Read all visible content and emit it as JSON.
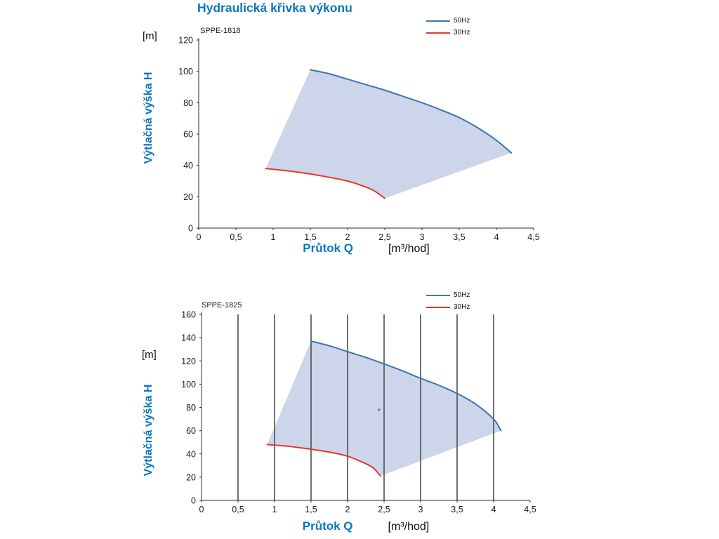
{
  "page": {
    "title": "Hydraulická křivka výkonu"
  },
  "colors": {
    "accent_blue": "#0d76bc",
    "curve_blue": "#3c76b0",
    "curve_red": "#e4392b",
    "envelope_fill": "#ccd5e9",
    "axis": "#2b2b2b",
    "grid": "#4d4d4d"
  },
  "chart_data": [
    {
      "type": "line",
      "model": "SPPE-1818",
      "y_unit": "[m]",
      "y_axis_label": "Výtlačná výška H",
      "x_axis_label": "Průtok Q",
      "x_unit": "[m³/hod]",
      "legend_position": "top-right",
      "xlim": [
        0,
        4.5
      ],
      "ylim": [
        0,
        120
      ],
      "xticks": [
        0,
        0.5,
        1,
        1.5,
        2,
        2.5,
        3,
        3.5,
        4,
        4.5
      ],
      "xtick_labels": [
        "0",
        "0,5",
        "1",
        "1,5",
        "2",
        "2,5",
        "3",
        "3,5",
        "4",
        "4,5"
      ],
      "yticks": [
        0,
        20,
        40,
        60,
        80,
        100,
        120
      ],
      "ytick_labels": [
        "0",
        "20",
        "40",
        "60",
        "80",
        "100",
        "120"
      ],
      "grid_x": [],
      "envelope_color": "#ccd5e9",
      "series": [
        {
          "name": "50Hz",
          "color": "#3c76b0",
          "points": [
            [
              1.5,
              101
            ],
            [
              1.75,
              98.5
            ],
            [
              2,
              95
            ],
            [
              2.25,
              91.5
            ],
            [
              2.5,
              88
            ],
            [
              2.75,
              84
            ],
            [
              3,
              80
            ],
            [
              3.25,
              75.5
            ],
            [
              3.5,
              70.5
            ],
            [
              3.75,
              64
            ],
            [
              4,
              56
            ],
            [
              4.2,
              48
            ]
          ]
        },
        {
          "name": "30Hz",
          "color": "#e4392b",
          "points": [
            [
              0.9,
              38
            ],
            [
              1.2,
              36.5
            ],
            [
              1.5,
              34.5
            ],
            [
              1.8,
              32
            ],
            [
              2,
              30
            ],
            [
              2.2,
              27
            ],
            [
              2.35,
              24
            ],
            [
              2.5,
              19
            ]
          ]
        }
      ]
    },
    {
      "type": "line",
      "model": "SPPE-1825",
      "y_unit": "[m]",
      "y_axis_label": "Výtlačná výška H",
      "x_axis_label": "Průtok Q",
      "x_unit": "[m³/hod]",
      "legend_position": "top-right",
      "xlim": [
        0,
        4.5
      ],
      "ylim": [
        0,
        160
      ],
      "xticks": [
        0,
        0.5,
        1,
        1.5,
        2,
        2.5,
        3,
        3.5,
        4,
        4.5
      ],
      "xtick_labels": [
        "0",
        "0,5",
        "1",
        "1,5",
        "2",
        "2,5",
        "3",
        "3,5",
        "4",
        "4,5"
      ],
      "yticks": [
        0,
        20,
        40,
        60,
        80,
        100,
        120,
        140,
        160
      ],
      "ytick_labels": [
        "0",
        "20",
        "40",
        "60",
        "80",
        "100",
        "120",
        "140",
        "160"
      ],
      "grid_x": [
        0.5,
        1,
        1.5,
        2,
        2.5,
        3,
        3.5,
        4
      ],
      "envelope_color": "#ccd5e9",
      "stray_dot": [
        2.43,
        78
      ],
      "series": [
        {
          "name": "50Hz",
          "color": "#3c76b0",
          "points": [
            [
              1.5,
              137
            ],
            [
              1.75,
              133
            ],
            [
              2,
              128
            ],
            [
              2.25,
              123
            ],
            [
              2.5,
              117.5
            ],
            [
              2.75,
              111.5
            ],
            [
              3,
              105
            ],
            [
              3.25,
              99
            ],
            [
              3.5,
              92
            ],
            [
              3.75,
              83
            ],
            [
              4,
              70
            ],
            [
              4.1,
              60
            ]
          ]
        },
        {
          "name": "30Hz",
          "color": "#e4392b",
          "points": [
            [
              0.9,
              48
            ],
            [
              1.2,
              46.5
            ],
            [
              1.5,
              44
            ],
            [
              1.8,
              41
            ],
            [
              2,
              38
            ],
            [
              2.2,
              33
            ],
            [
              2.35,
              28
            ],
            [
              2.45,
              21
            ]
          ]
        }
      ]
    }
  ]
}
